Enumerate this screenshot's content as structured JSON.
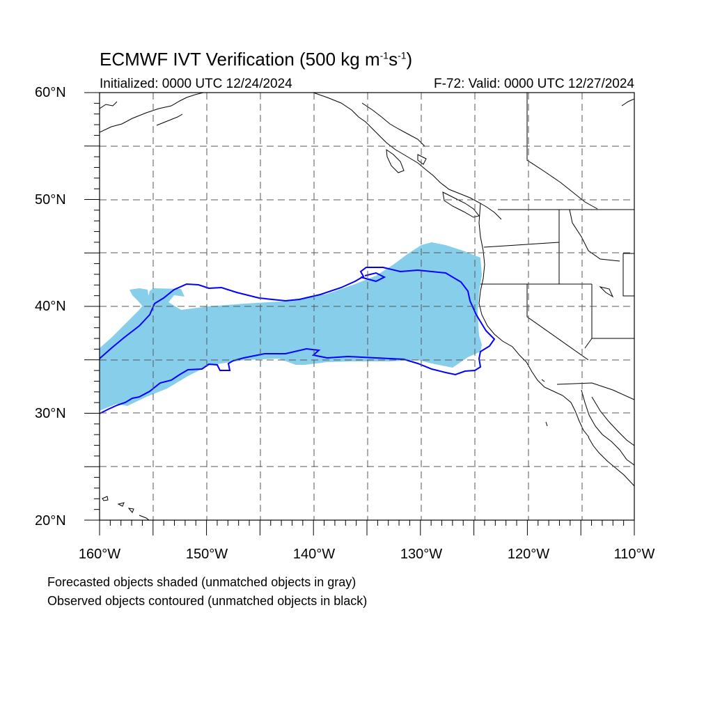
{
  "title_main": "ECMWF IVT Verification (500 kg m",
  "title_exp1": "-1",
  "title_mid": "s",
  "title_exp2": "-1",
  "title_end": ")",
  "subtitle_left": "Initialized: 0000 UTC 12/24/2024",
  "subtitle_right": "F-72: Valid: 0000 UTC 12/27/2024",
  "lat_labels": [
    "60°N",
    "50°N",
    "40°N",
    "30°N",
    "20°N"
  ],
  "lon_labels": [
    "160°W",
    "150°W",
    "140°W",
    "130°W",
    "120°W",
    "110°W"
  ],
  "footnote_1": "Forecasted objects shaded (unmatched objects in gray)",
  "footnote_2": "Observed objects contoured (unmatched objects in black)",
  "colors": {
    "forecast_fill": "#87ceeb",
    "observed_contour": "#0000ff",
    "coastline": "#000000",
    "grid": "#555555"
  },
  "map_extent": {
    "lon": [
      -160,
      -110
    ],
    "lat": [
      20,
      60
    ]
  }
}
